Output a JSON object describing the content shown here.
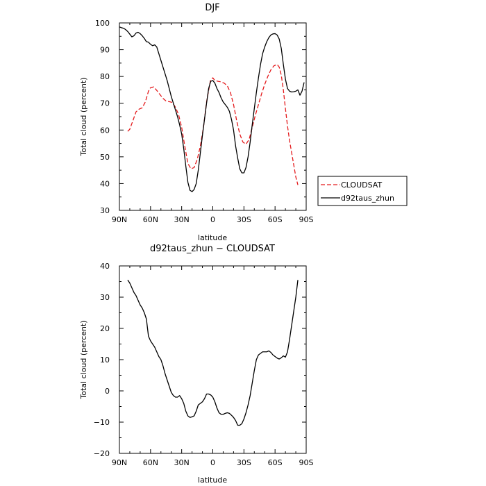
{
  "colors": {
    "cloudsat": "#e41a1c",
    "model": "#000000"
  },
  "chart_data": [
    {
      "type": "line",
      "title": "DJF",
      "xlabel": "latitude",
      "ylabel": "Total cloud (percent)",
      "xlim": [
        -90,
        90
      ],
      "ylim": [
        30,
        100
      ],
      "x_ticks": [
        -90,
        -60,
        -30,
        0,
        30,
        60,
        90
      ],
      "x_tick_labels": [
        "90N",
        "60N",
        "30N",
        "0",
        "30S",
        "60S",
        "90S"
      ],
      "y_ticks": [
        30,
        40,
        50,
        60,
        70,
        80,
        90,
        100
      ],
      "y_tick_labels": [
        "30",
        "40",
        "50",
        "60",
        "70",
        "80",
        "90",
        "100"
      ],
      "legend_position": "outside-right",
      "series": [
        {
          "name": "CLOUDSAT",
          "style": "dashed",
          "x": [
            -82,
            -80,
            -77,
            -74,
            -71,
            -68,
            -65,
            -62,
            -60,
            -57,
            -54,
            -51,
            -48,
            -45,
            -42,
            -39,
            -36,
            -33,
            -30,
            -27,
            -24,
            -21,
            -18,
            -15,
            -12,
            -9,
            -6,
            -3,
            -2,
            0,
            2,
            5,
            8,
            11,
            14,
            17,
            20,
            23,
            26,
            29,
            32,
            35,
            38,
            41,
            44,
            47,
            50,
            53,
            56,
            59,
            62,
            64,
            66,
            68,
            70,
            72,
            74,
            76,
            78,
            80,
            82
          ],
          "values": [
            59.5,
            60.3,
            63.5,
            66.8,
            67.8,
            68.3,
            70.5,
            74.5,
            75.8,
            76.1,
            74.8,
            73.3,
            71.8,
            70.8,
            70.6,
            70.3,
            68.5,
            65.8,
            61.0,
            54.0,
            47.5,
            45.5,
            46.0,
            49.0,
            54.0,
            61.0,
            70.5,
            77.0,
            78.8,
            79.5,
            78.5,
            78.2,
            78.0,
            77.5,
            76.5,
            74.0,
            69.5,
            63.5,
            58.5,
            55.5,
            54.7,
            56.5,
            61.0,
            65.5,
            69.5,
            73.5,
            77.0,
            80.0,
            82.5,
            84.0,
            84.5,
            83.5,
            80.5,
            75.0,
            68.0,
            61.5,
            56.0,
            51.5,
            47.0,
            42.5,
            39.5
          ]
        },
        {
          "name": "d92taus_zhun",
          "style": "solid",
          "x": [
            -90,
            -88,
            -86,
            -84,
            -82,
            -80,
            -78,
            -76,
            -74,
            -72,
            -70,
            -68,
            -66,
            -64,
            -62,
            -60,
            -58,
            -56,
            -54,
            -52,
            -50,
            -48,
            -46,
            -44,
            -42,
            -40,
            -38,
            -36,
            -34,
            -32,
            -30,
            -28,
            -26,
            -24,
            -22,
            -20,
            -18,
            -16,
            -14,
            -12,
            -10,
            -8,
            -6,
            -4,
            -2,
            0,
            2,
            4,
            6,
            8,
            10,
            12,
            14,
            16,
            18,
            20,
            22,
            24,
            26,
            28,
            30,
            32,
            34,
            36,
            38,
            40,
            42,
            44,
            46,
            48,
            50,
            52,
            54,
            56,
            58,
            60,
            62,
            64,
            66,
            68,
            70,
            72,
            74,
            76,
            78,
            80,
            82,
            84,
            86,
            88
          ],
          "values": [
            98.5,
            98.2,
            98.0,
            97.5,
            96.8,
            95.8,
            94.8,
            95.2,
            96.2,
            96.5,
            96.0,
            95.2,
            94.2,
            93.0,
            92.8,
            92.0,
            91.5,
            91.8,
            91.0,
            88.5,
            86.0,
            83.5,
            81.0,
            78.5,
            75.5,
            72.5,
            70.0,
            67.5,
            65.0,
            62.0,
            58.5,
            53.0,
            46.5,
            40.5,
            37.5,
            37.0,
            37.8,
            40.0,
            45.0,
            51.5,
            58.0,
            64.0,
            70.0,
            75.5,
            78.2,
            78.5,
            77.5,
            75.5,
            74.0,
            72.0,
            70.5,
            69.5,
            68.5,
            67.0,
            64.0,
            60.0,
            54.0,
            49.5,
            45.5,
            44.0,
            44.0,
            46.0,
            50.0,
            55.5,
            62.0,
            68.0,
            74.0,
            79.5,
            84.5,
            88.5,
            91.0,
            93.0,
            94.5,
            95.5,
            95.9,
            96.0,
            95.5,
            94.0,
            90.5,
            84.5,
            79.0,
            75.5,
            74.5,
            74.2,
            74.3,
            74.5,
            75.0,
            73.0,
            74.5,
            77.8
          ]
        }
      ]
    },
    {
      "type": "line",
      "title": "d92taus_zhun − CLOUDSAT",
      "xlabel": "latitude",
      "ylabel": "Total cloud (percent)",
      "xlim": [
        -90,
        90
      ],
      "ylim": [
        -20,
        40
      ],
      "x_ticks": [
        -90,
        -60,
        -30,
        0,
        30,
        60,
        90
      ],
      "x_tick_labels": [
        "90N",
        "60N",
        "30N",
        "0",
        "30S",
        "60S",
        "90S"
      ],
      "y_ticks": [
        -20,
        -10,
        0,
        10,
        20,
        30,
        40
      ],
      "y_tick_labels": [
        "−20",
        "−10",
        "0",
        "10",
        "20",
        "30",
        "40"
      ],
      "series": [
        {
          "style": "solid",
          "x": [
            -82,
            -80,
            -78,
            -76,
            -74,
            -72,
            -70,
            -68,
            -66,
            -64,
            -62,
            -60,
            -58,
            -56,
            -54,
            -52,
            -50,
            -48,
            -46,
            -44,
            -42,
            -40,
            -38,
            -36,
            -34,
            -32,
            -30,
            -28,
            -26,
            -24,
            -22,
            -20,
            -18,
            -16,
            -14,
            -12,
            -10,
            -8,
            -6,
            -4,
            -2,
            0,
            2,
            4,
            6,
            8,
            10,
            12,
            14,
            16,
            18,
            20,
            22,
            24,
            26,
            28,
            30,
            32,
            34,
            36,
            38,
            40,
            42,
            44,
            46,
            48,
            50,
            52,
            54,
            56,
            58,
            60,
            62,
            64,
            66,
            68,
            70,
            72,
            74,
            76,
            78,
            80,
            82
          ],
          "values": [
            35.5,
            34.5,
            33.0,
            31.5,
            30.5,
            29.0,
            27.5,
            26.5,
            25.0,
            23.0,
            17.5,
            16.0,
            15.0,
            14.0,
            12.5,
            11.0,
            10.0,
            8.0,
            5.5,
            3.5,
            1.5,
            -0.5,
            -1.5,
            -2.0,
            -2.0,
            -1.5,
            -2.5,
            -4.0,
            -6.5,
            -8.0,
            -8.5,
            -8.3,
            -8.0,
            -6.5,
            -4.5,
            -4.0,
            -3.5,
            -2.5,
            -1.0,
            -1.0,
            -1.3,
            -2.0,
            -3.5,
            -5.5,
            -7.0,
            -7.5,
            -7.5,
            -7.2,
            -7.0,
            -7.2,
            -7.8,
            -8.5,
            -9.5,
            -11.0,
            -11.0,
            -10.5,
            -9.0,
            -7.0,
            -4.5,
            -1.5,
            2.5,
            6.5,
            10.0,
            11.5,
            12.0,
            12.5,
            12.5,
            12.5,
            12.8,
            12.3,
            11.5,
            11.0,
            10.5,
            10.2,
            10.6,
            11.2,
            10.8,
            12.5,
            16.5,
            21.0,
            25.5,
            30.0,
            35.5
          ]
        }
      ]
    }
  ]
}
